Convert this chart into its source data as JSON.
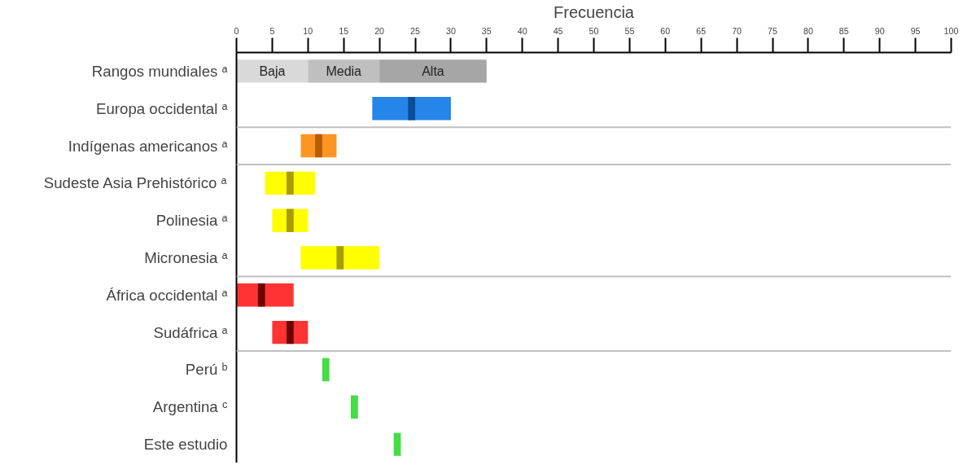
{
  "chart_data": {
    "type": "bar",
    "orientation": "horizontal",
    "xlabel": "Frecuencia",
    "categories": [
      "Rangos mundiales ᵃ",
      "Europa occidental ᵃ",
      "Indígenas americanos ᵃ",
      "Sudeste Asia Prehistórico ᵃ",
      "Polinesia ᵃ",
      "Micronesia ᵃ",
      "África occidental ᵃ",
      "Sudáfrica ᵃ",
      "Perú ᵇ",
      "Argentina ᶜ",
      "Este estudio"
    ],
    "series": [
      {
        "name": "Baja",
        "color": "#d9d9d9",
        "base": [
          0,
          null,
          null,
          null,
          null,
          null,
          null,
          null,
          null,
          null,
          null
        ],
        "values": [
          10,
          null,
          null,
          null,
          null,
          null,
          null,
          null,
          null,
          null,
          null
        ]
      },
      {
        "name": "Media",
        "color": "#bfbfbf",
        "base": [
          10,
          null,
          null,
          null,
          null,
          null,
          null,
          null,
          null,
          null,
          null
        ],
        "values": [
          10,
          null,
          null,
          null,
          null,
          null,
          null,
          null,
          null,
          null,
          null
        ]
      },
      {
        "name": "Alta",
        "color": "#a6a6a6",
        "base": [
          20,
          null,
          null,
          null,
          null,
          null,
          null,
          null,
          null,
          null,
          null
        ],
        "values": [
          15,
          null,
          null,
          null,
          null,
          null,
          null,
          null,
          null,
          null,
          null
        ]
      },
      {
        "colors": [
          null,
          "#2585e8",
          "#fb9622",
          "#ffff00",
          "#ffff00",
          "#ffff00",
          "#ff3333",
          "#ff3333",
          null,
          null,
          null
        ],
        "base": [
          null,
          19,
          9,
          4,
          5,
          9,
          0,
          5,
          null,
          null,
          null
        ],
        "values": [
          null,
          11,
          5,
          7,
          5,
          11,
          8,
          5,
          null,
          null,
          null
        ]
      },
      {
        "colors": [
          null,
          "#0c4d94",
          "#b85c05",
          "#a89d00",
          "#a89d00",
          "#a89d00",
          "#6e0000",
          "#6e0000",
          "#44dd44",
          "#44dd44",
          "#44dd44"
        ],
        "base": [
          null,
          24,
          11,
          7,
          7,
          14,
          3,
          7,
          12,
          16,
          22
        ],
        "values": [
          null,
          1,
          1,
          1,
          1,
          1,
          1,
          1,
          1,
          1,
          1
        ]
      }
    ],
    "xlim": [
      0,
      100
    ],
    "xticks": [
      0,
      5,
      10,
      15,
      20,
      25,
      30,
      35,
      40,
      45,
      50,
      55,
      60,
      65,
      70,
      75,
      80,
      85,
      90,
      95,
      100
    ]
  }
}
